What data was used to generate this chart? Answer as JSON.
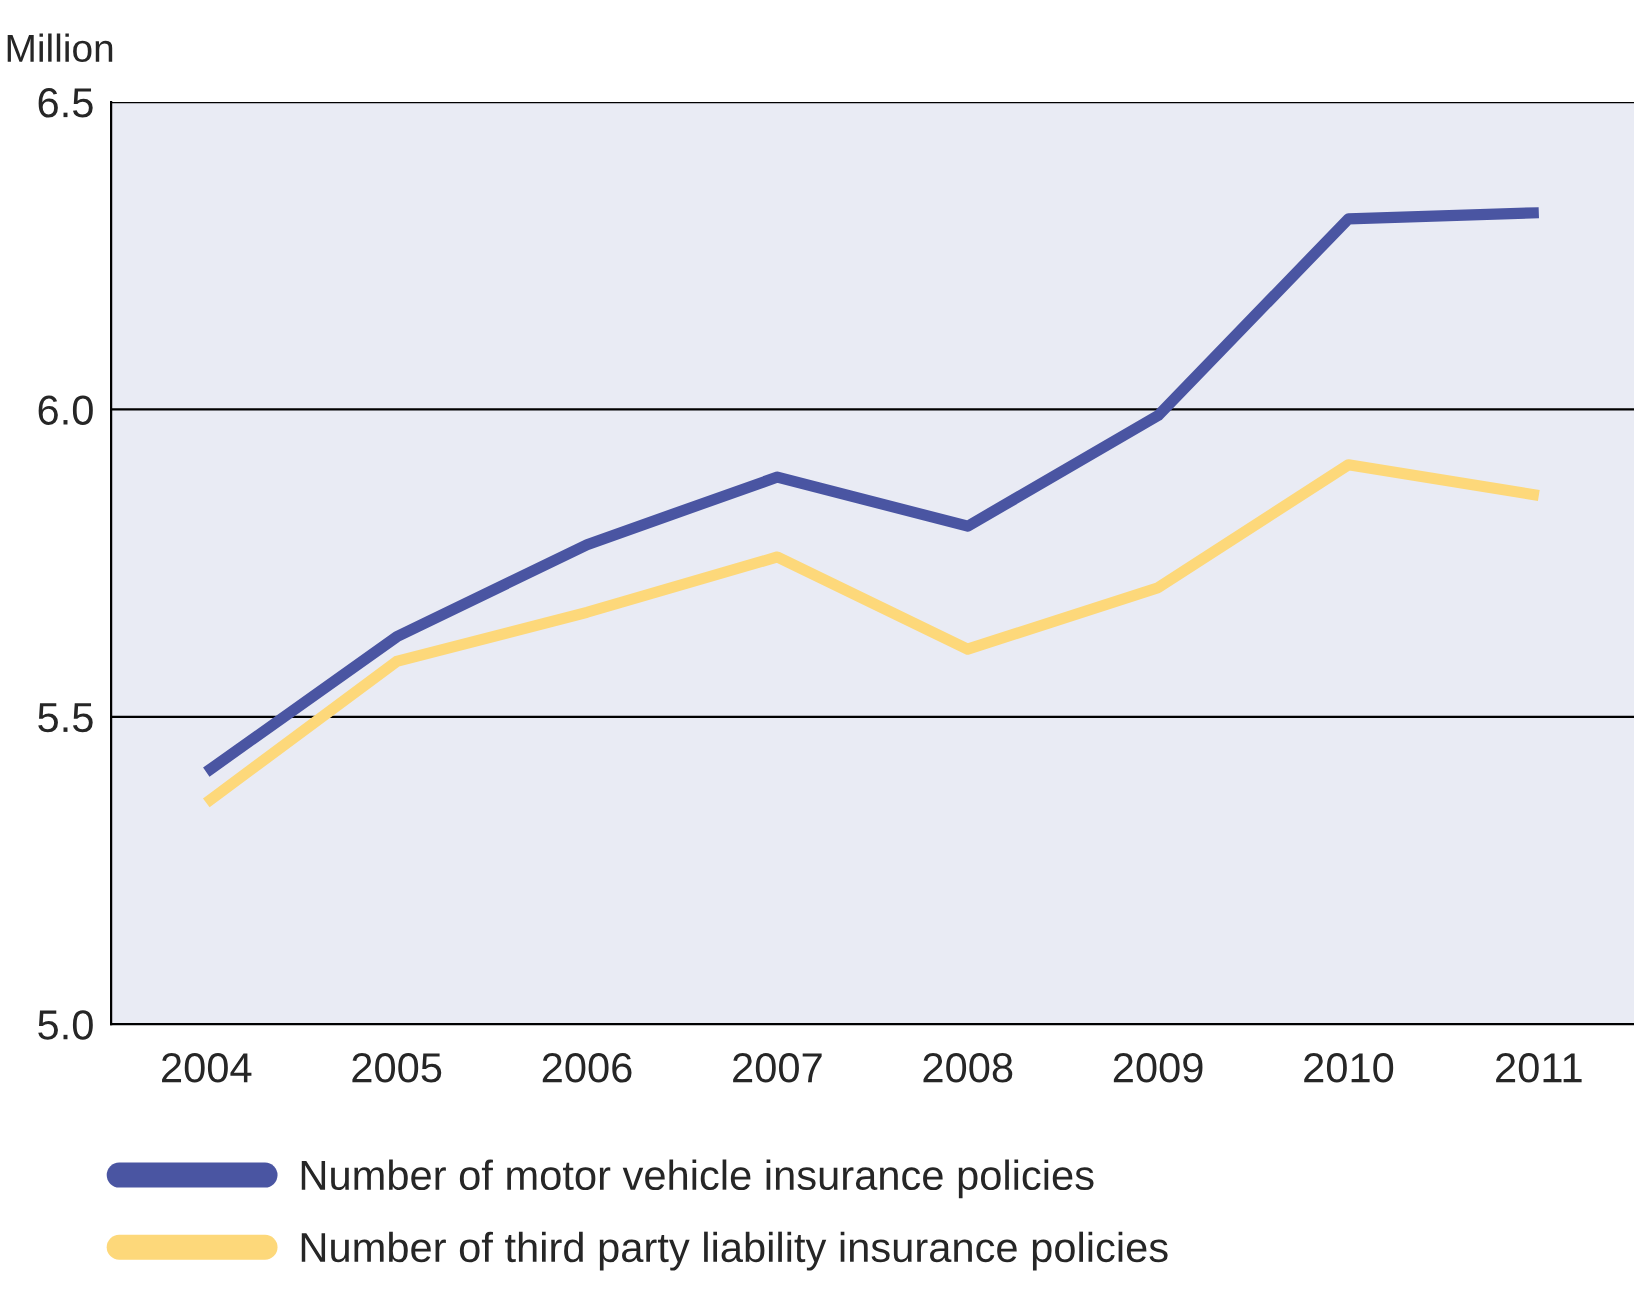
{
  "chart_data": {
    "type": "line",
    "ylabel": "Million",
    "categories": [
      "2004",
      "2005",
      "2006",
      "2007",
      "2008",
      "2009",
      "2010",
      "2011"
    ],
    "series": [
      {
        "name": "Number of motor vehicle insurance policies",
        "color": "#4a55a2",
        "values": [
          5.41,
          5.63,
          5.78,
          5.89,
          5.81,
          5.99,
          6.31,
          6.32
        ]
      },
      {
        "name": "Number of third party liability insurance policies",
        "color": "#fdd87a",
        "values": [
          5.36,
          5.59,
          5.67,
          5.76,
          5.61,
          5.71,
          5.91,
          5.86
        ]
      }
    ],
    "ylim": [
      5.0,
      6.5
    ],
    "yticks": [
      {
        "value": 5.0,
        "label": "5.0"
      },
      {
        "value": 5.5,
        "label": "5.5"
      },
      {
        "value": 6.0,
        "label": "6.0"
      },
      {
        "value": 6.5,
        "label": "6.5"
      }
    ],
    "grid": "y",
    "legend": "bottom",
    "marker": "none",
    "line_style": "solid"
  }
}
